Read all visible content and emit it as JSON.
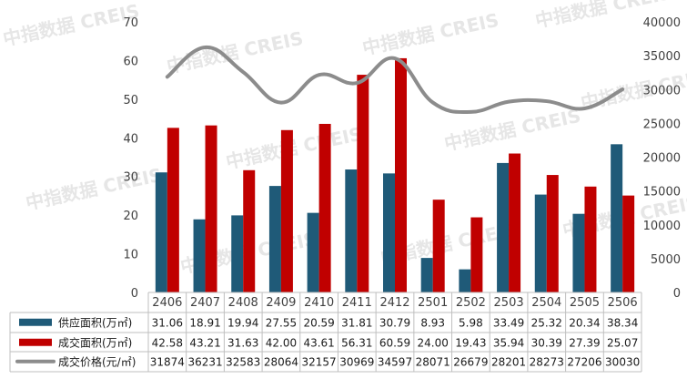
{
  "chart_data": {
    "type": "bar",
    "categories": [
      "2406",
      "2407",
      "2408",
      "2409",
      "2410",
      "2411",
      "2412",
      "2501",
      "2502",
      "2503",
      "2504",
      "2505",
      "2506"
    ],
    "series": [
      {
        "name": "供应面积(万㎡)",
        "kind": "bar",
        "axis": "left",
        "color": "#1f5a78",
        "values": [
          31.06,
          18.91,
          19.94,
          27.55,
          20.59,
          31.81,
          30.79,
          8.93,
          5.98,
          33.49,
          25.32,
          20.34,
          38.34
        ]
      },
      {
        "name": "成交面积(万㎡)",
        "kind": "bar",
        "axis": "left",
        "color": "#c00000",
        "values": [
          42.58,
          43.21,
          31.63,
          42.0,
          43.61,
          56.31,
          60.59,
          24.0,
          19.43,
          35.94,
          30.39,
          27.39,
          25.07
        ]
      },
      {
        "name": "成交价格(元/㎡)",
        "kind": "line",
        "axis": "right",
        "color": "#8c8c8c",
        "values": [
          31874,
          36231,
          32583,
          28064,
          32157,
          30969,
          34597,
          28071,
          26679,
          28201,
          28273,
          27206,
          30030
        ]
      }
    ],
    "y_left": {
      "min": 0,
      "max": 70,
      "ticks": [
        0,
        10,
        20,
        30,
        40,
        50,
        60,
        70
      ]
    },
    "y_right": {
      "min": 0,
      "max": 40000,
      "ticks": [
        0,
        5000,
        10000,
        15000,
        20000,
        25000,
        30000,
        35000,
        40000
      ]
    },
    "grid": false,
    "legend": "data-table"
  },
  "watermark": "中指数据 CREIS"
}
